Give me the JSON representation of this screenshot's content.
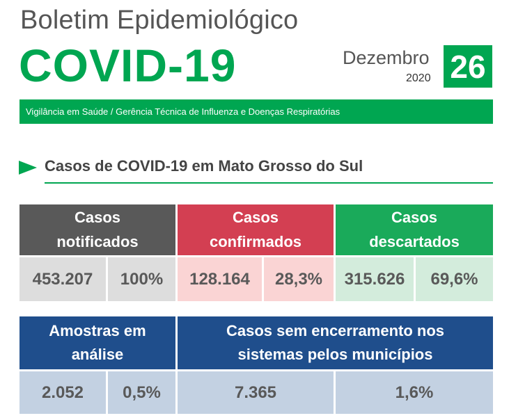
{
  "header": {
    "title": "Boletim Epidemiológico",
    "headline": "COVID-19",
    "month": "Dezembro",
    "year": "2020",
    "day": "26",
    "subtitle_bar": "Vigilância em Saúde / Gerência Técnica de Influenza e Doenças Respiratórias"
  },
  "section": {
    "title": "Casos de COVID-19 em Mato Grosso do Sul",
    "icon": "triangle-arrow-icon"
  },
  "cases_table": {
    "notified": {
      "label": "Casos\nnotificados",
      "count": "453.207",
      "percent": "100%"
    },
    "confirmed": {
      "label": "Casos\nconfirmados",
      "count": "128.164",
      "percent": "28,3%"
    },
    "discarded": {
      "label": "Casos\ndescartados",
      "count": "315.626",
      "percent": "69,6%"
    }
  },
  "pending_table": {
    "samples": {
      "label": "Amostras em\nanálise",
      "count": "2.052",
      "percent": "0,5%"
    },
    "open_cases": {
      "label": "Casos sem encerramento nos\nsistemas pelos municípios",
      "count": "7.365",
      "percent": "1,6%"
    }
  },
  "colors": {
    "green": "#00a651",
    "gray_header": "#595959",
    "red_header": "#d33f52",
    "green_header": "#1aaa5a",
    "blue_header": "#1f4e8c",
    "gray_value": "#dddddd",
    "red_value": "#fad4d4",
    "green_value": "#d3ecdc",
    "blue_value": "#c3d1e2"
  }
}
